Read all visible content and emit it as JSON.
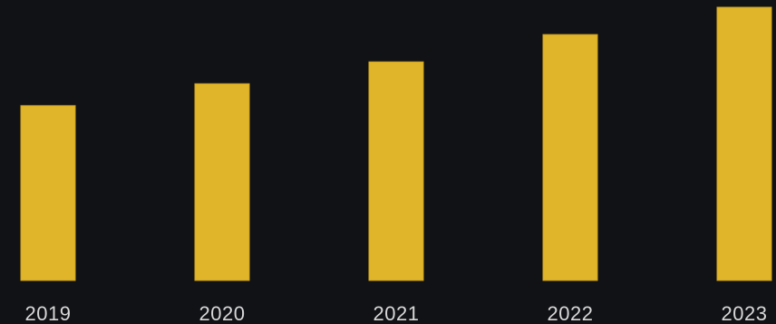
{
  "colors": {
    "background": "#111216",
    "bar": "#e0b52a",
    "bar_edge": "#cfa21e",
    "label": "#d8d8d8"
  },
  "chart_data": {
    "type": "bar",
    "categories": [
      "2019",
      "2020",
      "2021",
      "2022",
      "2023"
    ],
    "values": [
      64,
      72,
      80,
      90,
      100
    ],
    "title": "",
    "xlabel": "",
    "ylabel": "",
    "ylim": [
      0,
      100
    ],
    "grid": false,
    "legend": "none"
  }
}
